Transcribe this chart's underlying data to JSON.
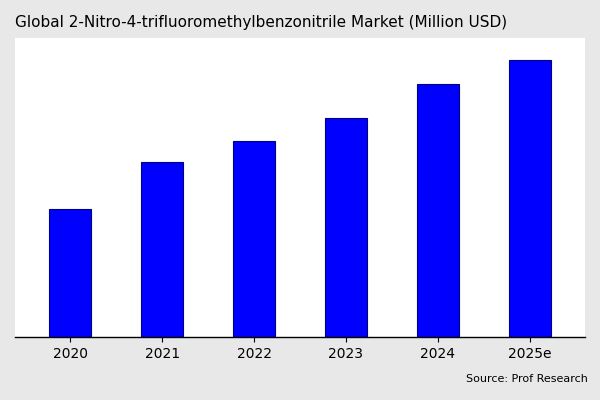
{
  "title": "Global 2-Nitro-4-trifluoromethylbenzonitrile Market (Million USD)",
  "categories": [
    "2020",
    "2021",
    "2022",
    "2023",
    "2024",
    "2025e"
  ],
  "values": [
    38,
    52,
    58,
    65,
    75,
    82
  ],
  "bar_color": "#0000FF",
  "bar_edge_color": "#000080",
  "plot_bg_color": "#ffffff",
  "fig_bg_color": "#e8e8e8",
  "title_fontsize": 11,
  "tick_fontsize": 10,
  "source_text": "Source: Prof Research",
  "source_fontsize": 8,
  "bar_width": 0.45,
  "ylim_max_factor": 1.08
}
